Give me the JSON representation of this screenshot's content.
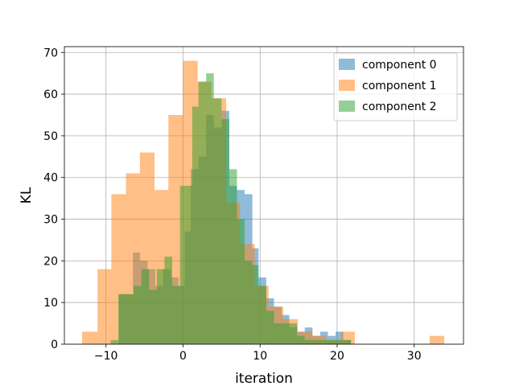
{
  "chart_data": {
    "type": "histogram",
    "title": "",
    "xlabel": "iteration",
    "ylabel": "KL",
    "xlim": [
      -15.4,
      36.4
    ],
    "ylim": [
      0,
      71.4
    ],
    "xticks": [
      -10,
      0,
      10,
      20,
      30
    ],
    "xtick_labels": [
      "−10",
      "0",
      "10",
      "20",
      "30"
    ],
    "yticks": [
      0,
      10,
      20,
      30,
      40,
      50,
      60,
      70
    ],
    "ytick_labels": [
      "0",
      "10",
      "20",
      "30",
      "40",
      "50",
      "60",
      "70"
    ],
    "grid": true,
    "legend_position": "top-right",
    "series": [
      {
        "name": "component 0",
        "color": "#1f77b4",
        "alpha": 0.5,
        "bins": [
          [
            -8.3,
            -6.5,
            12
          ],
          [
            -6.5,
            -5.6,
            22
          ],
          [
            -5.6,
            -4.6,
            20
          ],
          [
            -4.6,
            -3.6,
            18
          ],
          [
            -3.6,
            -2.6,
            14
          ],
          [
            -2.6,
            -1.6,
            18
          ],
          [
            -1.6,
            -0.6,
            16
          ],
          [
            -0.6,
            0.2,
            14
          ],
          [
            0.2,
            1.0,
            27
          ],
          [
            1.0,
            2.0,
            42
          ],
          [
            2.0,
            3.0,
            45
          ],
          [
            3.0,
            4.0,
            55
          ],
          [
            4.0,
            5.0,
            52
          ],
          [
            5.0,
            6.0,
            56
          ],
          [
            6.0,
            7.0,
            38
          ],
          [
            7.0,
            8.0,
            37
          ],
          [
            8.0,
            9.0,
            36
          ],
          [
            9.0,
            9.8,
            23
          ],
          [
            9.8,
            10.8,
            16
          ],
          [
            10.8,
            11.8,
            11
          ],
          [
            11.8,
            12.8,
            9
          ],
          [
            12.8,
            13.8,
            7
          ],
          [
            13.8,
            14.8,
            4
          ],
          [
            14.8,
            15.8,
            3
          ],
          [
            15.8,
            16.8,
            4
          ],
          [
            16.8,
            17.8,
            2
          ],
          [
            17.8,
            18.8,
            3
          ],
          [
            18.8,
            19.8,
            2
          ],
          [
            19.8,
            20.8,
            3
          ],
          [
            20.8,
            21.8,
            1
          ]
        ]
      },
      {
        "name": "component 1",
        "color": "#ff7f0e",
        "alpha": 0.5,
        "bins": [
          [
            -13.1,
            -11.1,
            3
          ],
          [
            -11.1,
            -9.3,
            18
          ],
          [
            -9.3,
            -7.4,
            36
          ],
          [
            -7.4,
            -5.6,
            41
          ],
          [
            -5.6,
            -3.7,
            46
          ],
          [
            -3.7,
            -1.9,
            37
          ],
          [
            -1.9,
            0.0,
            55
          ],
          [
            0.0,
            1.9,
            68
          ],
          [
            1.9,
            3.7,
            63
          ],
          [
            3.7,
            5.6,
            59
          ],
          [
            5.6,
            7.4,
            34
          ],
          [
            7.4,
            9.3,
            24
          ],
          [
            9.3,
            11.1,
            14
          ],
          [
            11.1,
            13.0,
            9
          ],
          [
            13.0,
            14.9,
            6
          ],
          [
            14.9,
            16.8,
            3
          ],
          [
            16.8,
            18.6,
            2
          ],
          [
            18.6,
            20.5,
            1
          ],
          [
            20.5,
            22.3,
            3
          ],
          [
            32.0,
            33.9,
            2
          ]
        ]
      },
      {
        "name": "component 2",
        "color": "#2ca02c",
        "alpha": 0.5,
        "bins": [
          [
            -9.4,
            -8.4,
            1
          ],
          [
            -8.4,
            -6.4,
            12
          ],
          [
            -6.4,
            -5.4,
            14
          ],
          [
            -5.4,
            -4.4,
            18
          ],
          [
            -4.4,
            -3.4,
            13
          ],
          [
            -3.4,
            -2.4,
            18
          ],
          [
            -2.4,
            -1.4,
            21
          ],
          [
            -1.4,
            -0.4,
            14
          ],
          [
            -0.4,
            0.4,
            38
          ],
          [
            0.4,
            1.2,
            38
          ],
          [
            1.2,
            2.0,
            57
          ],
          [
            2.0,
            3.0,
            63
          ],
          [
            3.0,
            4.0,
            65
          ],
          [
            4.0,
            5.0,
            59
          ],
          [
            5.0,
            6.0,
            54
          ],
          [
            6.0,
            7.0,
            42
          ],
          [
            7.0,
            8.0,
            30
          ],
          [
            8.0,
            9.0,
            20
          ],
          [
            9.0,
            9.8,
            19
          ],
          [
            9.8,
            10.8,
            14
          ],
          [
            10.8,
            11.8,
            8
          ],
          [
            11.8,
            12.8,
            5
          ],
          [
            12.8,
            13.8,
            5
          ],
          [
            13.8,
            14.8,
            5
          ],
          [
            14.8,
            15.8,
            2
          ],
          [
            15.8,
            16.8,
            1
          ],
          [
            16.8,
            17.8,
            1
          ],
          [
            17.8,
            18.8,
            1
          ],
          [
            18.8,
            19.8,
            1
          ],
          [
            19.8,
            20.8,
            1
          ],
          [
            20.8,
            21.8,
            1
          ]
        ]
      }
    ]
  }
}
